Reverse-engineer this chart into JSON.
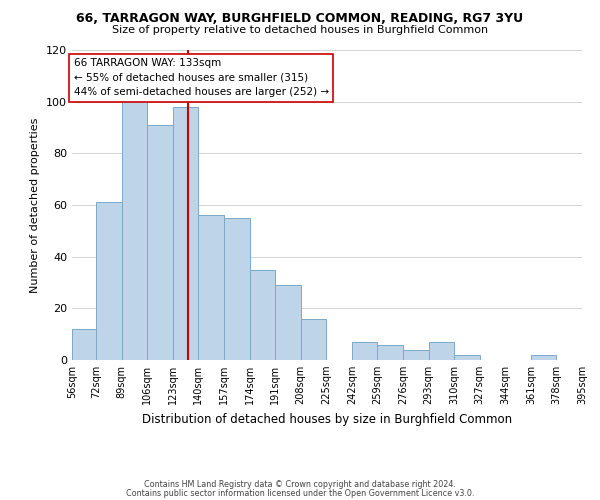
{
  "title": "66, TARRAGON WAY, BURGHFIELD COMMON, READING, RG7 3YU",
  "subtitle": "Size of property relative to detached houses in Burghfield Common",
  "xlabel": "Distribution of detached houses by size in Burghfield Common",
  "ylabel": "Number of detached properties",
  "bar_color": "#bed4e8",
  "bar_edge_color": "#7aaac8",
  "bin_edges": [
    56,
    72,
    89,
    106,
    123,
    140,
    157,
    174,
    191,
    208,
    225,
    242,
    259,
    276,
    293,
    310,
    327,
    344,
    361,
    378,
    395
  ],
  "bin_labels": [
    "56sqm",
    "72sqm",
    "89sqm",
    "106sqm",
    "123sqm",
    "140sqm",
    "157sqm",
    "174sqm",
    "191sqm",
    "208sqm",
    "225sqm",
    "242sqm",
    "259sqm",
    "276sqm",
    "293sqm",
    "310sqm",
    "327sqm",
    "344sqm",
    "361sqm",
    "378sqm",
    "395sqm"
  ],
  "bar_heights": [
    12,
    61,
    101,
    91,
    98,
    56,
    55,
    35,
    29,
    16,
    0,
    7,
    6,
    4,
    7,
    2,
    0,
    0,
    2,
    0
  ],
  "ylim": [
    0,
    120
  ],
  "yticks": [
    0,
    20,
    40,
    60,
    80,
    100,
    120
  ],
  "vline_x": 133,
  "vline_color": "#cc0000",
  "annotation_text": "66 TARRAGON WAY: 133sqm\n← 55% of detached houses are smaller (315)\n44% of semi-detached houses are larger (252) →",
  "annotation_box_color": "#ffffff",
  "annotation_box_edge_color": "#cc0000",
  "footer_line1": "Contains HM Land Registry data © Crown copyright and database right 2024.",
  "footer_line2": "Contains public sector information licensed under the Open Government Licence v3.0.",
  "background_color": "#ffffff",
  "grid_color": "#cccccc"
}
